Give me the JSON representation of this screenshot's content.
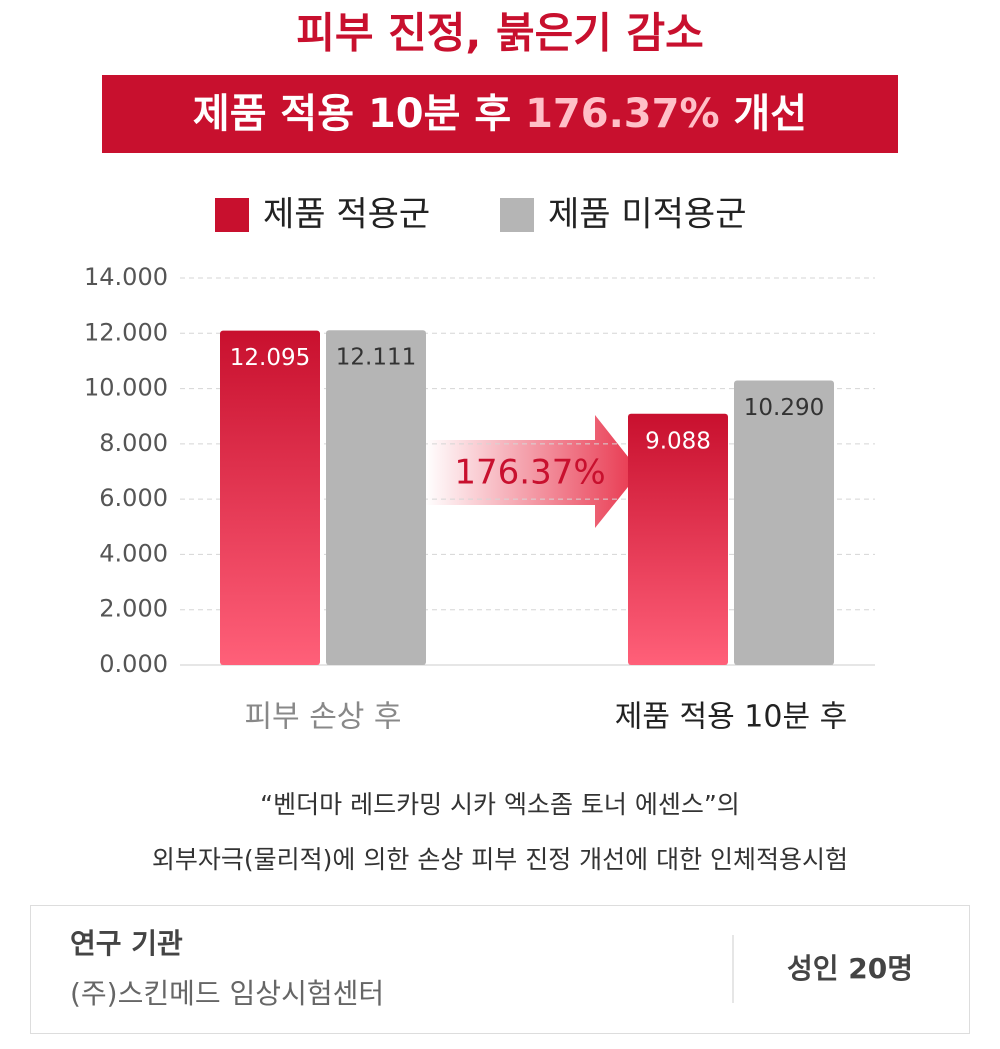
{
  "chart_data": {
    "type": "bar",
    "title": "피부 진정, 붉은기 감소",
    "banner": {
      "prefix": "제품 적용 10분 후",
      "highlight": "176.37%",
      "suffix": "개선"
    },
    "categories": [
      "피부 손상 후",
      "제품 적용 10분 후"
    ],
    "series": [
      {
        "name": "제품 적용군",
        "color": "#c8102e",
        "values": [
          12.095,
          9.088
        ],
        "value_labels": [
          "12.095",
          "9.088"
        ]
      },
      {
        "name": "제품 미적용군",
        "color": "#b5b5b5",
        "values": [
          12.111,
          10.29
        ],
        "value_labels": [
          "12.111",
          "10.290"
        ]
      }
    ],
    "ylim": [
      0,
      14
    ],
    "yticks": [
      {
        "value": 0,
        "label": "0.000"
      },
      {
        "value": 2,
        "label": "2.000"
      },
      {
        "value": 4,
        "label": "4.000"
      },
      {
        "value": 6,
        "label": "6.000"
      },
      {
        "value": 8,
        "label": "8.000"
      },
      {
        "value": 10,
        "label": "10.000"
      },
      {
        "value": 12,
        "label": "12.000"
      },
      {
        "value": 14,
        "label": "14.000"
      }
    ],
    "grid": true,
    "annotation": "176.37%",
    "note": [
      "“벤더마 레드카밍 시카 엑소좀 토너 에센스”의",
      "외부자극(물리적)에 의한 손상 피부 진정 개선에 대한 인체적용시험"
    ],
    "footer": {
      "label": "연구 기관",
      "institution": "(주)스킨메드 임상시험센터",
      "subjects": "성인 20명"
    }
  }
}
